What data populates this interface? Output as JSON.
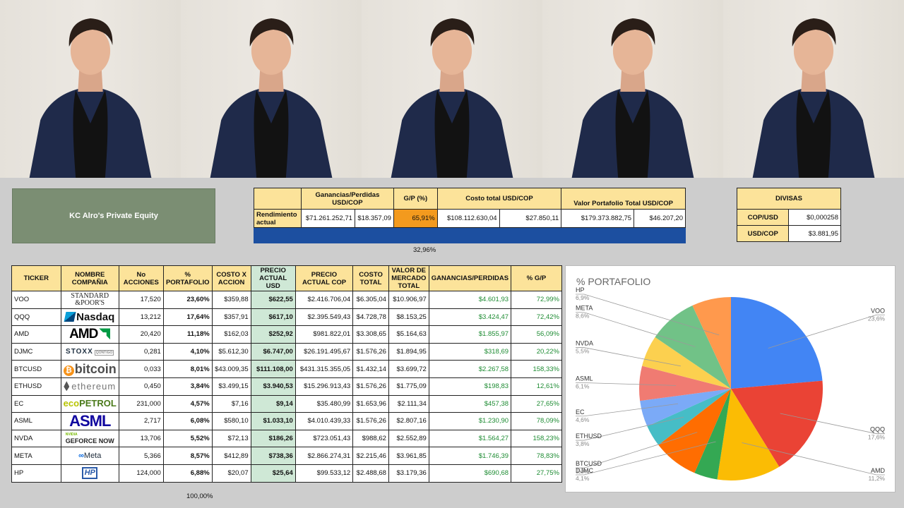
{
  "brand": {
    "name": "KC Alro's Private Equity"
  },
  "summary": {
    "headers": {
      "gains": "Ganancias/Perdidas USD/COP",
      "gp_pct": "G/P (%)",
      "cost": "Costo total USD/COP",
      "value": "Valor Portafolio Total USD/COP"
    },
    "row_label": "Rendimiento actual",
    "gains_cop": "$71.261.252,71",
    "gains_usd": "$18.357,09",
    "gp_pct": "65,91%",
    "cost_cop": "$108.112.630,04",
    "cost_usd": "$27.850,11",
    "value_cop": "$179.373.882,75",
    "value_usd": "$46.207,20",
    "below_pct": "32,96%"
  },
  "divisas": {
    "title": "DIVISAS",
    "rows": [
      {
        "label": "COP/USD",
        "value": "$0,000258"
      },
      {
        "label": "USD/COP",
        "value": "$3.881,95"
      }
    ]
  },
  "portfolio": {
    "headers": [
      "TICKER",
      "NOMBRE COMPAÑIA",
      "No ACCIONES",
      "% PORTAFOLIO",
      "COSTO X ACCION",
      "PRECIO ACTUAL USD",
      "PRECIO ACTUAL COP",
      "COSTO TOTAL",
      "VALOR DE MERCADO TOTAL",
      "GANANCIAS/PERDIDAS",
      "% G/P"
    ],
    "rows": [
      {
        "ticker": "VOO",
        "logo": "sp-logo",
        "logo_text": [
          "STANDARD",
          "&POOR'S"
        ],
        "shares": "17,520",
        "pct": "23,60%",
        "cost_share": "$359,88",
        "price_usd": "$622,55",
        "price_cop": "$2.416.706,04",
        "cost_total": "$6.305,04",
        "market": "$10.906,97",
        "gain": "$4.601,93",
        "gp": "72,99%"
      },
      {
        "ticker": "QQQ",
        "logo": "nasdaq-logo",
        "logo_text": [
          "Nasdaq"
        ],
        "shares": "13,212",
        "pct": "17,64%",
        "cost_share": "$357,91",
        "price_usd": "$617,10",
        "price_cop": "$2.395.549,43",
        "cost_total": "$4.728,78",
        "market": "$8.153,25",
        "gain": "$3.424,47",
        "gp": "72,42%"
      },
      {
        "ticker": "AMD",
        "logo": "amd-logo",
        "logo_text": [
          "AMD"
        ],
        "shares": "20,420",
        "pct": "11,18%",
        "cost_share": "$162,03",
        "price_usd": "$252,92",
        "price_cop": "$981.822,01",
        "cost_total": "$3.308,65",
        "market": "$5.164,63",
        "gain": "$1.855,97",
        "gp": "56,09%"
      },
      {
        "ticker": "DJMC",
        "logo": "stoxx-logo",
        "logo_text": [
          "STOXX",
          "QONTIGO"
        ],
        "shares": "0,281",
        "pct": "4,10%",
        "cost_share": "$5.612,30",
        "price_usd": "$6.747,00",
        "price_cop": "$26.191.495,67",
        "cost_total": "$1.576,26",
        "market": "$1.894,95",
        "gain": "$318,69",
        "gp": "20,22%"
      },
      {
        "ticker": "BTCUSD",
        "logo": "bitcoin-logo",
        "logo_text": [
          "bitcoin"
        ],
        "shares": "0,033",
        "pct": "8,01%",
        "cost_share": "$43.009,35",
        "price_usd": "$111.108,00",
        "price_cop": "$431.315.355,05",
        "cost_total": "$1.432,14",
        "market": "$3.699,72",
        "gain": "$2.267,58",
        "gp": "158,33%"
      },
      {
        "ticker": "ETHUSD",
        "logo": "ethereum-logo",
        "logo_text": [
          "ethereum"
        ],
        "shares": "0,450",
        "pct": "3,84%",
        "cost_share": "$3.499,15",
        "price_usd": "$3.940,53",
        "price_cop": "$15.296.913,43",
        "cost_total": "$1.576,26",
        "market": "$1.775,09",
        "gain": "$198,83",
        "gp": "12,61%"
      },
      {
        "ticker": "EC",
        "logo": "ecopetrol-logo",
        "logo_text": [
          "eco",
          "PETROL"
        ],
        "shares": "231,000",
        "pct": "4,57%",
        "cost_share": "$7,16",
        "price_usd": "$9,14",
        "price_cop": "$35.480,99",
        "cost_total": "$1.653,96",
        "market": "$2.111,34",
        "gain": "$457,38",
        "gp": "27,65%"
      },
      {
        "ticker": "ASML",
        "logo": "asml-logo",
        "logo_text": [
          "ASML"
        ],
        "shares": "2,717",
        "pct": "6,08%",
        "cost_share": "$580,10",
        "price_usd": "$1.033,10",
        "price_cop": "$4.010.439,33",
        "cost_total": "$1.576,26",
        "market": "$2.807,16",
        "gain": "$1.230,90",
        "gp": "78,09%"
      },
      {
        "ticker": "NVDA",
        "logo": "geforce-now-logo",
        "logo_text": [
          "NVIDIA",
          "GEFORCE NOW"
        ],
        "shares": "13,706",
        "pct": "5,52%",
        "cost_share": "$72,13",
        "price_usd": "$186,26",
        "price_cop": "$723.051,43",
        "cost_total": "$988,62",
        "market": "$2.552,89",
        "gain": "$1.564,27",
        "gp": "158,23%"
      },
      {
        "ticker": "META",
        "logo": "meta-logo",
        "logo_text": [
          "∞",
          "Meta"
        ],
        "shares": "5,366",
        "pct": "8,57%",
        "cost_share": "$412,89",
        "price_usd": "$738,36",
        "price_cop": "$2.866.274,31",
        "cost_total": "$2.215,46",
        "market": "$3.961,85",
        "gain": "$1.746,39",
        "gp": "78,83%"
      },
      {
        "ticker": "HP",
        "logo": "hp-logo",
        "logo_text": [
          "HP"
        ],
        "shares": "124,000",
        "pct": "6,88%",
        "cost_share": "$20,07",
        "price_usd": "$25,64",
        "price_cop": "$99.533,12",
        "cost_total": "$2.488,68",
        "market": "$3.179,36",
        "gain": "$690,68",
        "gp": "27,75%"
      }
    ],
    "total_pct": "100,00%"
  },
  "chart_data": {
    "type": "pie",
    "title": "% PORTAFOLIO",
    "slices": [
      {
        "label": "VOO",
        "value": 23.6,
        "pct_label": "23,6%",
        "color": "#4285f4"
      },
      {
        "label": "QQQ",
        "value": 17.6,
        "pct_label": "17,6%",
        "color": "#ea4335"
      },
      {
        "label": "AMD",
        "value": 11.2,
        "pct_label": "11,2%",
        "color": "#fbbc04"
      },
      {
        "label": "DJMC",
        "value": 4.1,
        "pct_label": "4,1%",
        "color": "#34a853"
      },
      {
        "label": "BTCUSD",
        "value": 8.0,
        "pct_label": "8,0%",
        "color": "#ff6d01"
      },
      {
        "label": "ETHUSD",
        "value": 3.8,
        "pct_label": "3,8%",
        "color": "#46bdc6"
      },
      {
        "label": "EC",
        "value": 4.6,
        "pct_label": "4,6%",
        "color": "#7baaf7"
      },
      {
        "label": "ASML",
        "value": 6.1,
        "pct_label": "6,1%",
        "color": "#f07b72"
      },
      {
        "label": "NVDA",
        "value": 5.5,
        "pct_label": "5,5%",
        "color": "#fcd04f"
      },
      {
        "label": "META",
        "value": 8.6,
        "pct_label": "8,6%",
        "color": "#71c287"
      },
      {
        "label": "HP",
        "value": 6.9,
        "pct_label": "6,9%",
        "color": "#ff994d"
      }
    ]
  },
  "colors": {
    "header_yellow": "#fce39a",
    "brand_green": "#7b8e73",
    "gain_green": "#1e8c33",
    "price_highlight": "#cfe8d6",
    "gp_orange": "#f39a1e",
    "bar_blue": "#1c4fa0"
  }
}
